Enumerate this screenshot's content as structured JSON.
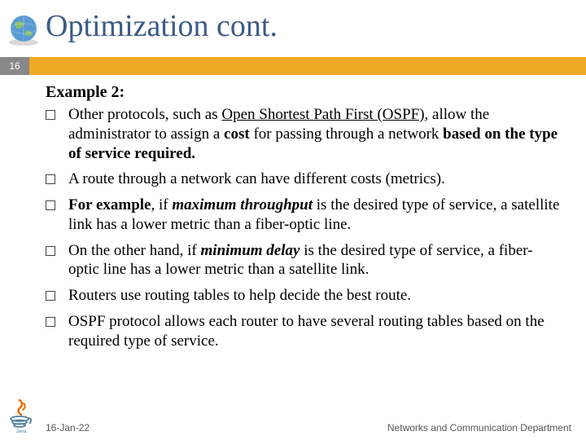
{
  "title": {
    "text": "Optimization cont.",
    "color": "#3b5a87",
    "fontsize": 38
  },
  "accent_bar": {
    "color": "#f0a924",
    "height": 22
  },
  "page_number": {
    "value": "16",
    "bg": "#888888",
    "fg": "#ffffff"
  },
  "example_label": "Example 2:",
  "bullets": [
    {
      "html": "Other protocols, such as <span class='u'>Open Shortest Path First (OSPF)</span>, allow the administrator to assign a <b>cost</b> for passing through a network <b>based on the type of service required.</b>"
    },
    {
      "html": "A route through a network can have different costs (metrics)."
    },
    {
      "html": "<b>For example</b>, if <span class='bi'>maximum throughput</span> is the desired type of service, a satellite link has a lower metric than a fiber-optic line."
    },
    {
      "html": "On the other hand, if <span class='bi'>minimum delay</span> is the desired type of service, a fiber-optic line has a lower metric than a satellite link."
    },
    {
      "html": "Routers use routing tables to help decide the best route."
    },
    {
      "html": "OSPF protocol allows each router to have several routing tables based on the required type of service."
    }
  ],
  "footer": {
    "left": "16-Jan-22",
    "right": "Networks and Communication Department"
  },
  "globe_colors": {
    "water": "#5a9bd4",
    "land": "#8fbf6a",
    "ring": "#d8d8d8"
  },
  "java_colors": {
    "cup": "#5382a1",
    "steam": "#e76f00",
    "text": "#5382a1"
  }
}
